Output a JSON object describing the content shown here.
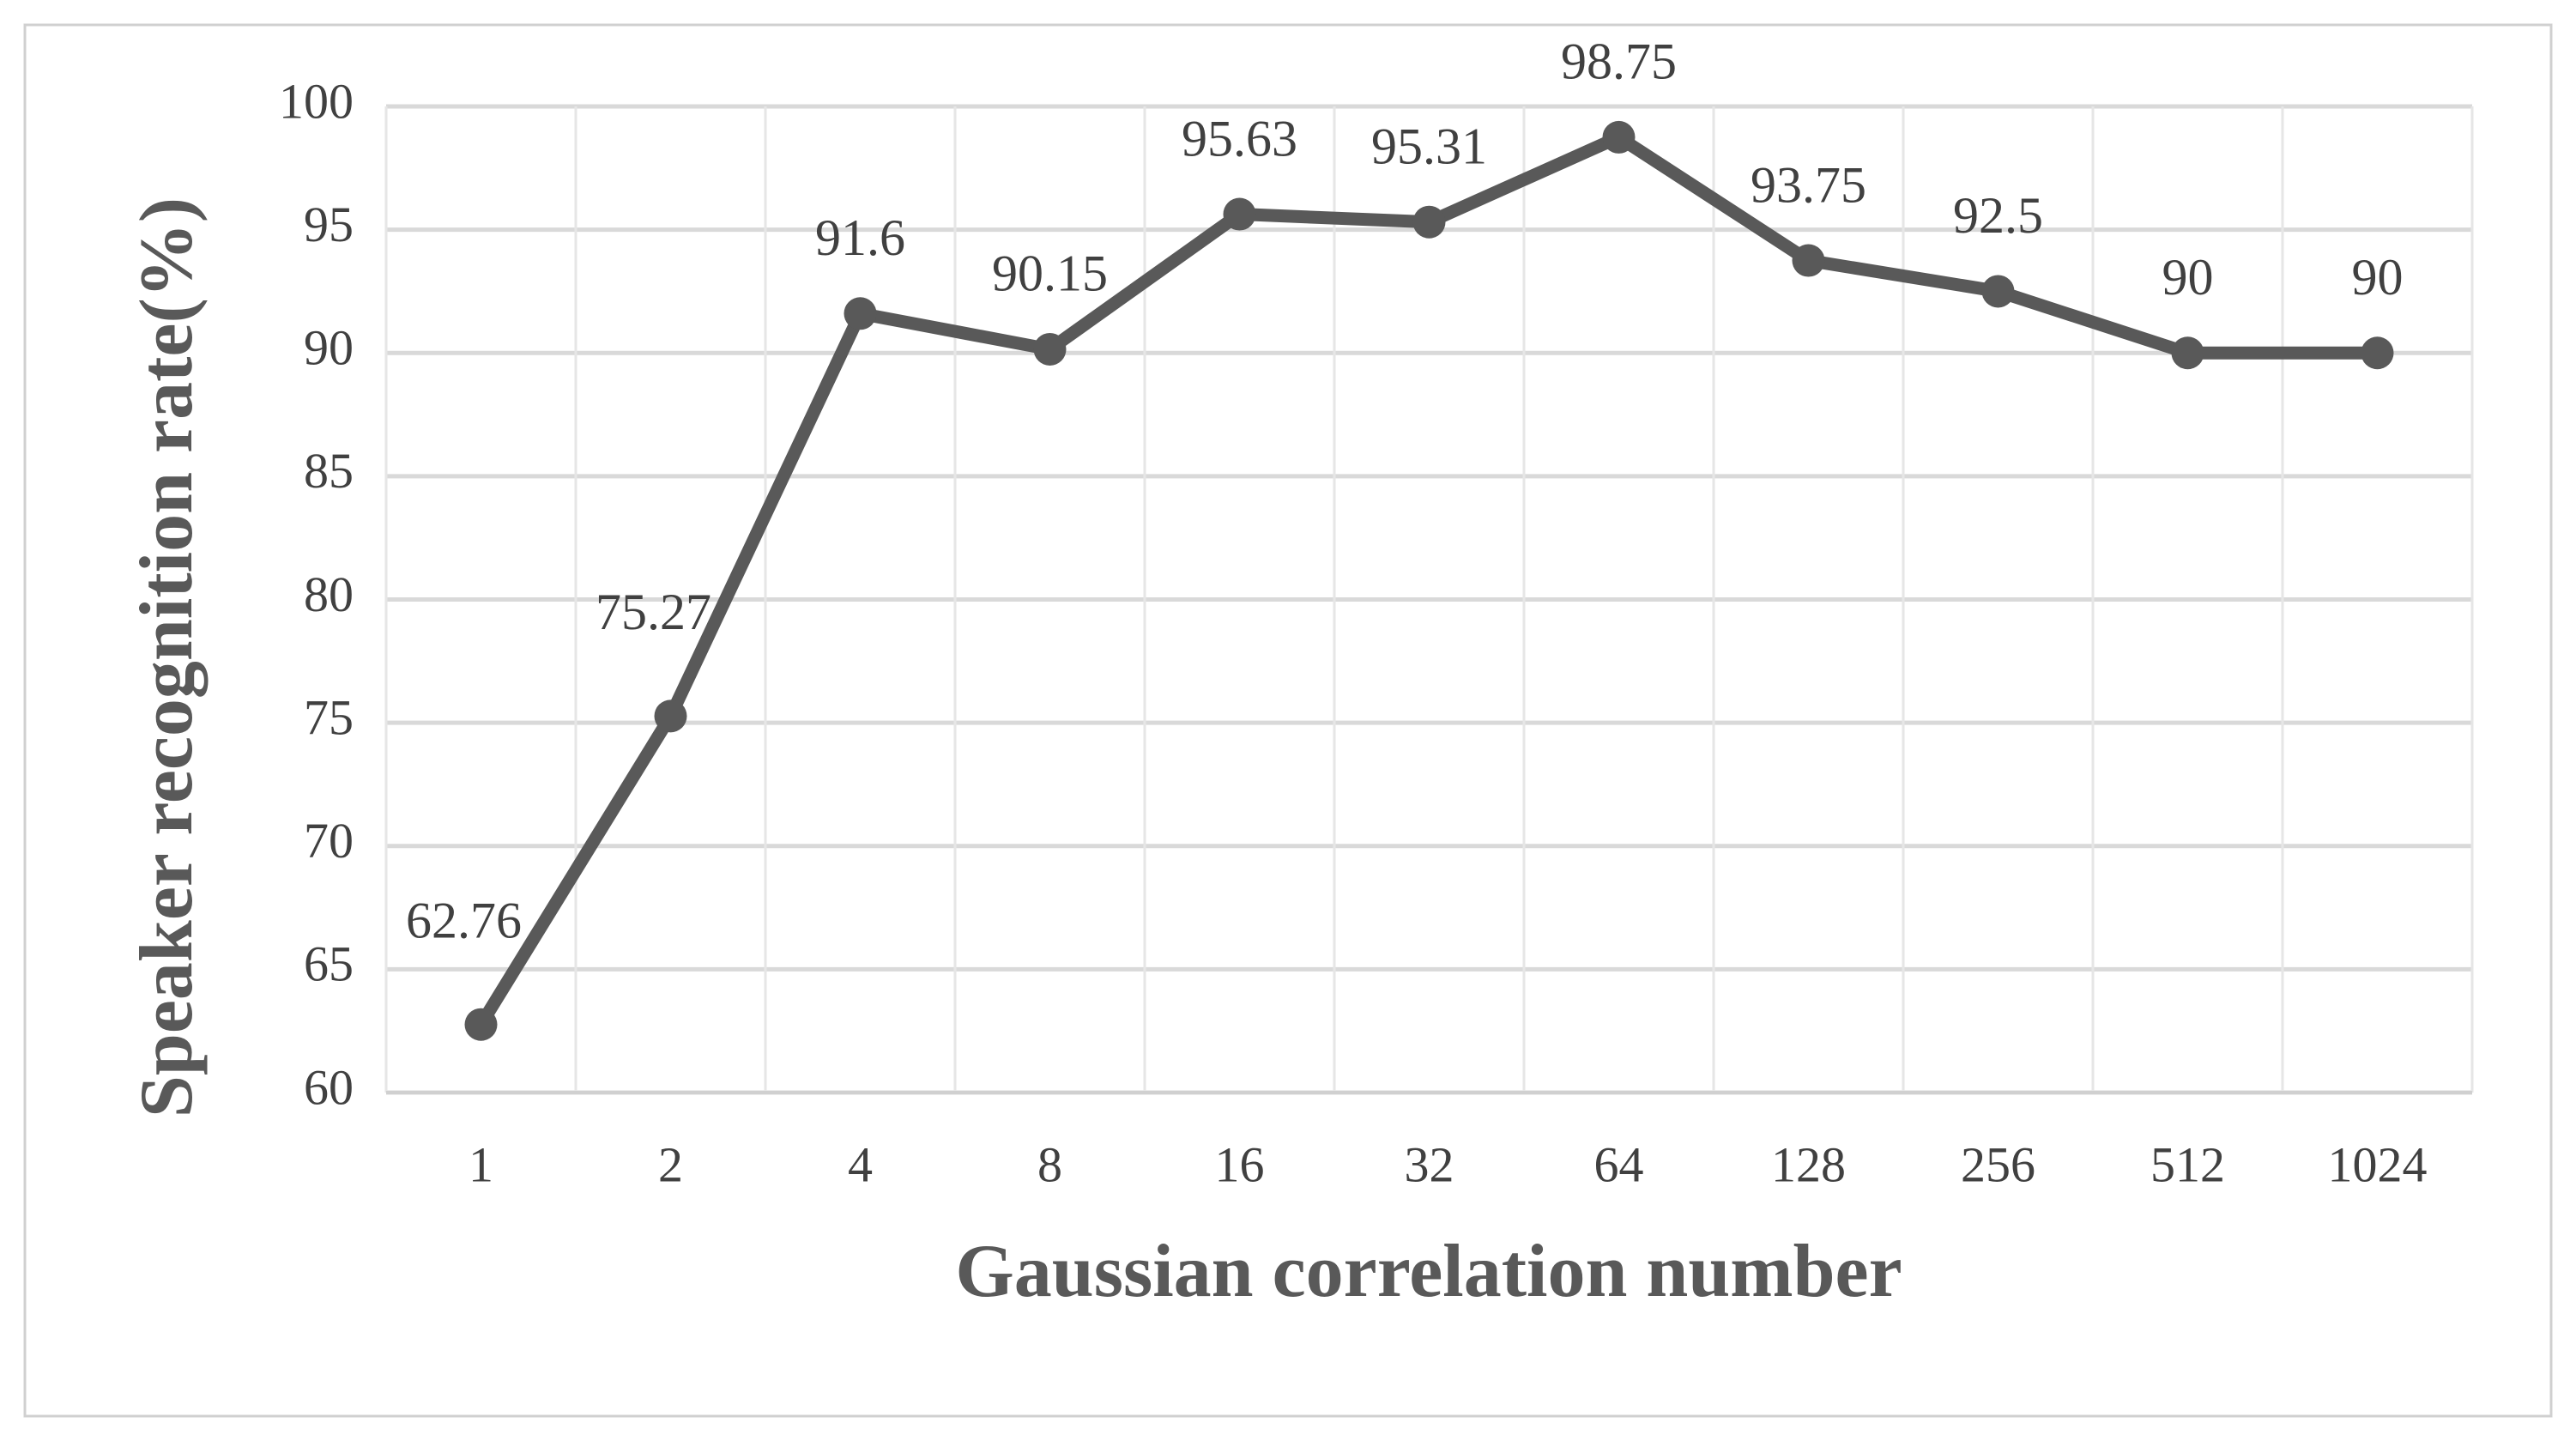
{
  "chart_data": {
    "type": "line",
    "x_label": "Gaussian correlation number",
    "y_label": "Speaker recognition rate(%)",
    "categories": [
      "1",
      "2",
      "4",
      "8",
      "16",
      "32",
      "64",
      "128",
      "256",
      "512",
      "1024"
    ],
    "values": [
      62.76,
      75.27,
      91.6,
      90.15,
      95.63,
      95.31,
      98.75,
      93.75,
      92.5,
      90,
      90
    ],
    "color": "#595959",
    "ylim": [
      60,
      100
    ],
    "yticks": [
      60,
      65,
      70,
      75,
      80,
      85,
      90,
      95,
      100
    ],
    "grid": true
  }
}
